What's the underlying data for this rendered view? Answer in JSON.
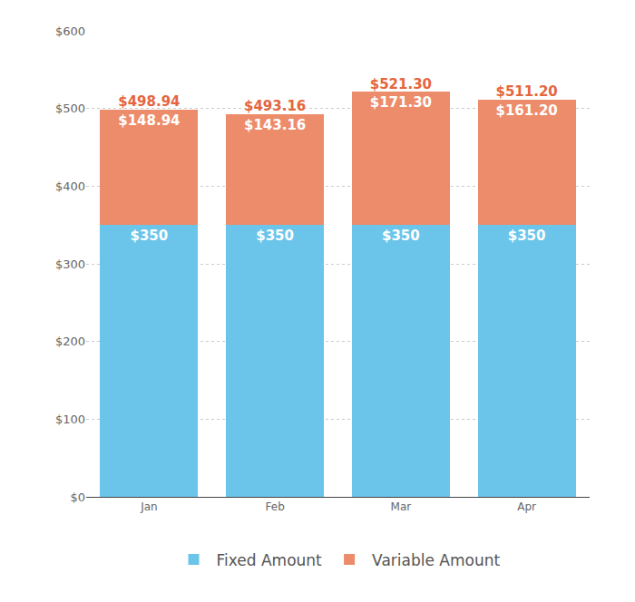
{
  "chart_data": {
    "type": "bar",
    "categories": [
      "Jan",
      "Feb",
      "Mar",
      "Apr"
    ],
    "series": [
      {
        "name": "Fixed Amount",
        "color": "#6bc5ea",
        "values": [
          350,
          350,
          350,
          350
        ],
        "value_labels": [
          "$350",
          "$350",
          "$350",
          "$350"
        ]
      },
      {
        "name": "Variable Amount",
        "color": "#ec8c6b",
        "values": [
          148.94,
          143.16,
          171.3,
          161.2
        ],
        "value_labels": [
          "$148.94",
          "$143.16",
          "$171.30",
          "$161.20"
        ]
      }
    ],
    "totals": [
      498.94,
      493.16,
      521.3,
      511.2
    ],
    "total_labels": [
      "$498.94",
      "$493.16",
      "$521.30",
      "$511.20"
    ],
    "total_color": "#e4663d",
    "ylim": [
      0,
      600
    ],
    "yticks": [
      {
        "value": 0,
        "label": "$0"
      },
      {
        "value": 100,
        "label": "$100"
      },
      {
        "value": 200,
        "label": "$200"
      },
      {
        "value": 300,
        "label": "$300"
      },
      {
        "value": 400,
        "label": "$400"
      },
      {
        "value": 500,
        "label": "$500"
      },
      {
        "value": 600,
        "label": "$600"
      }
    ],
    "grid": true,
    "stacked": true,
    "data_labels": true,
    "legend": "bottom"
  }
}
